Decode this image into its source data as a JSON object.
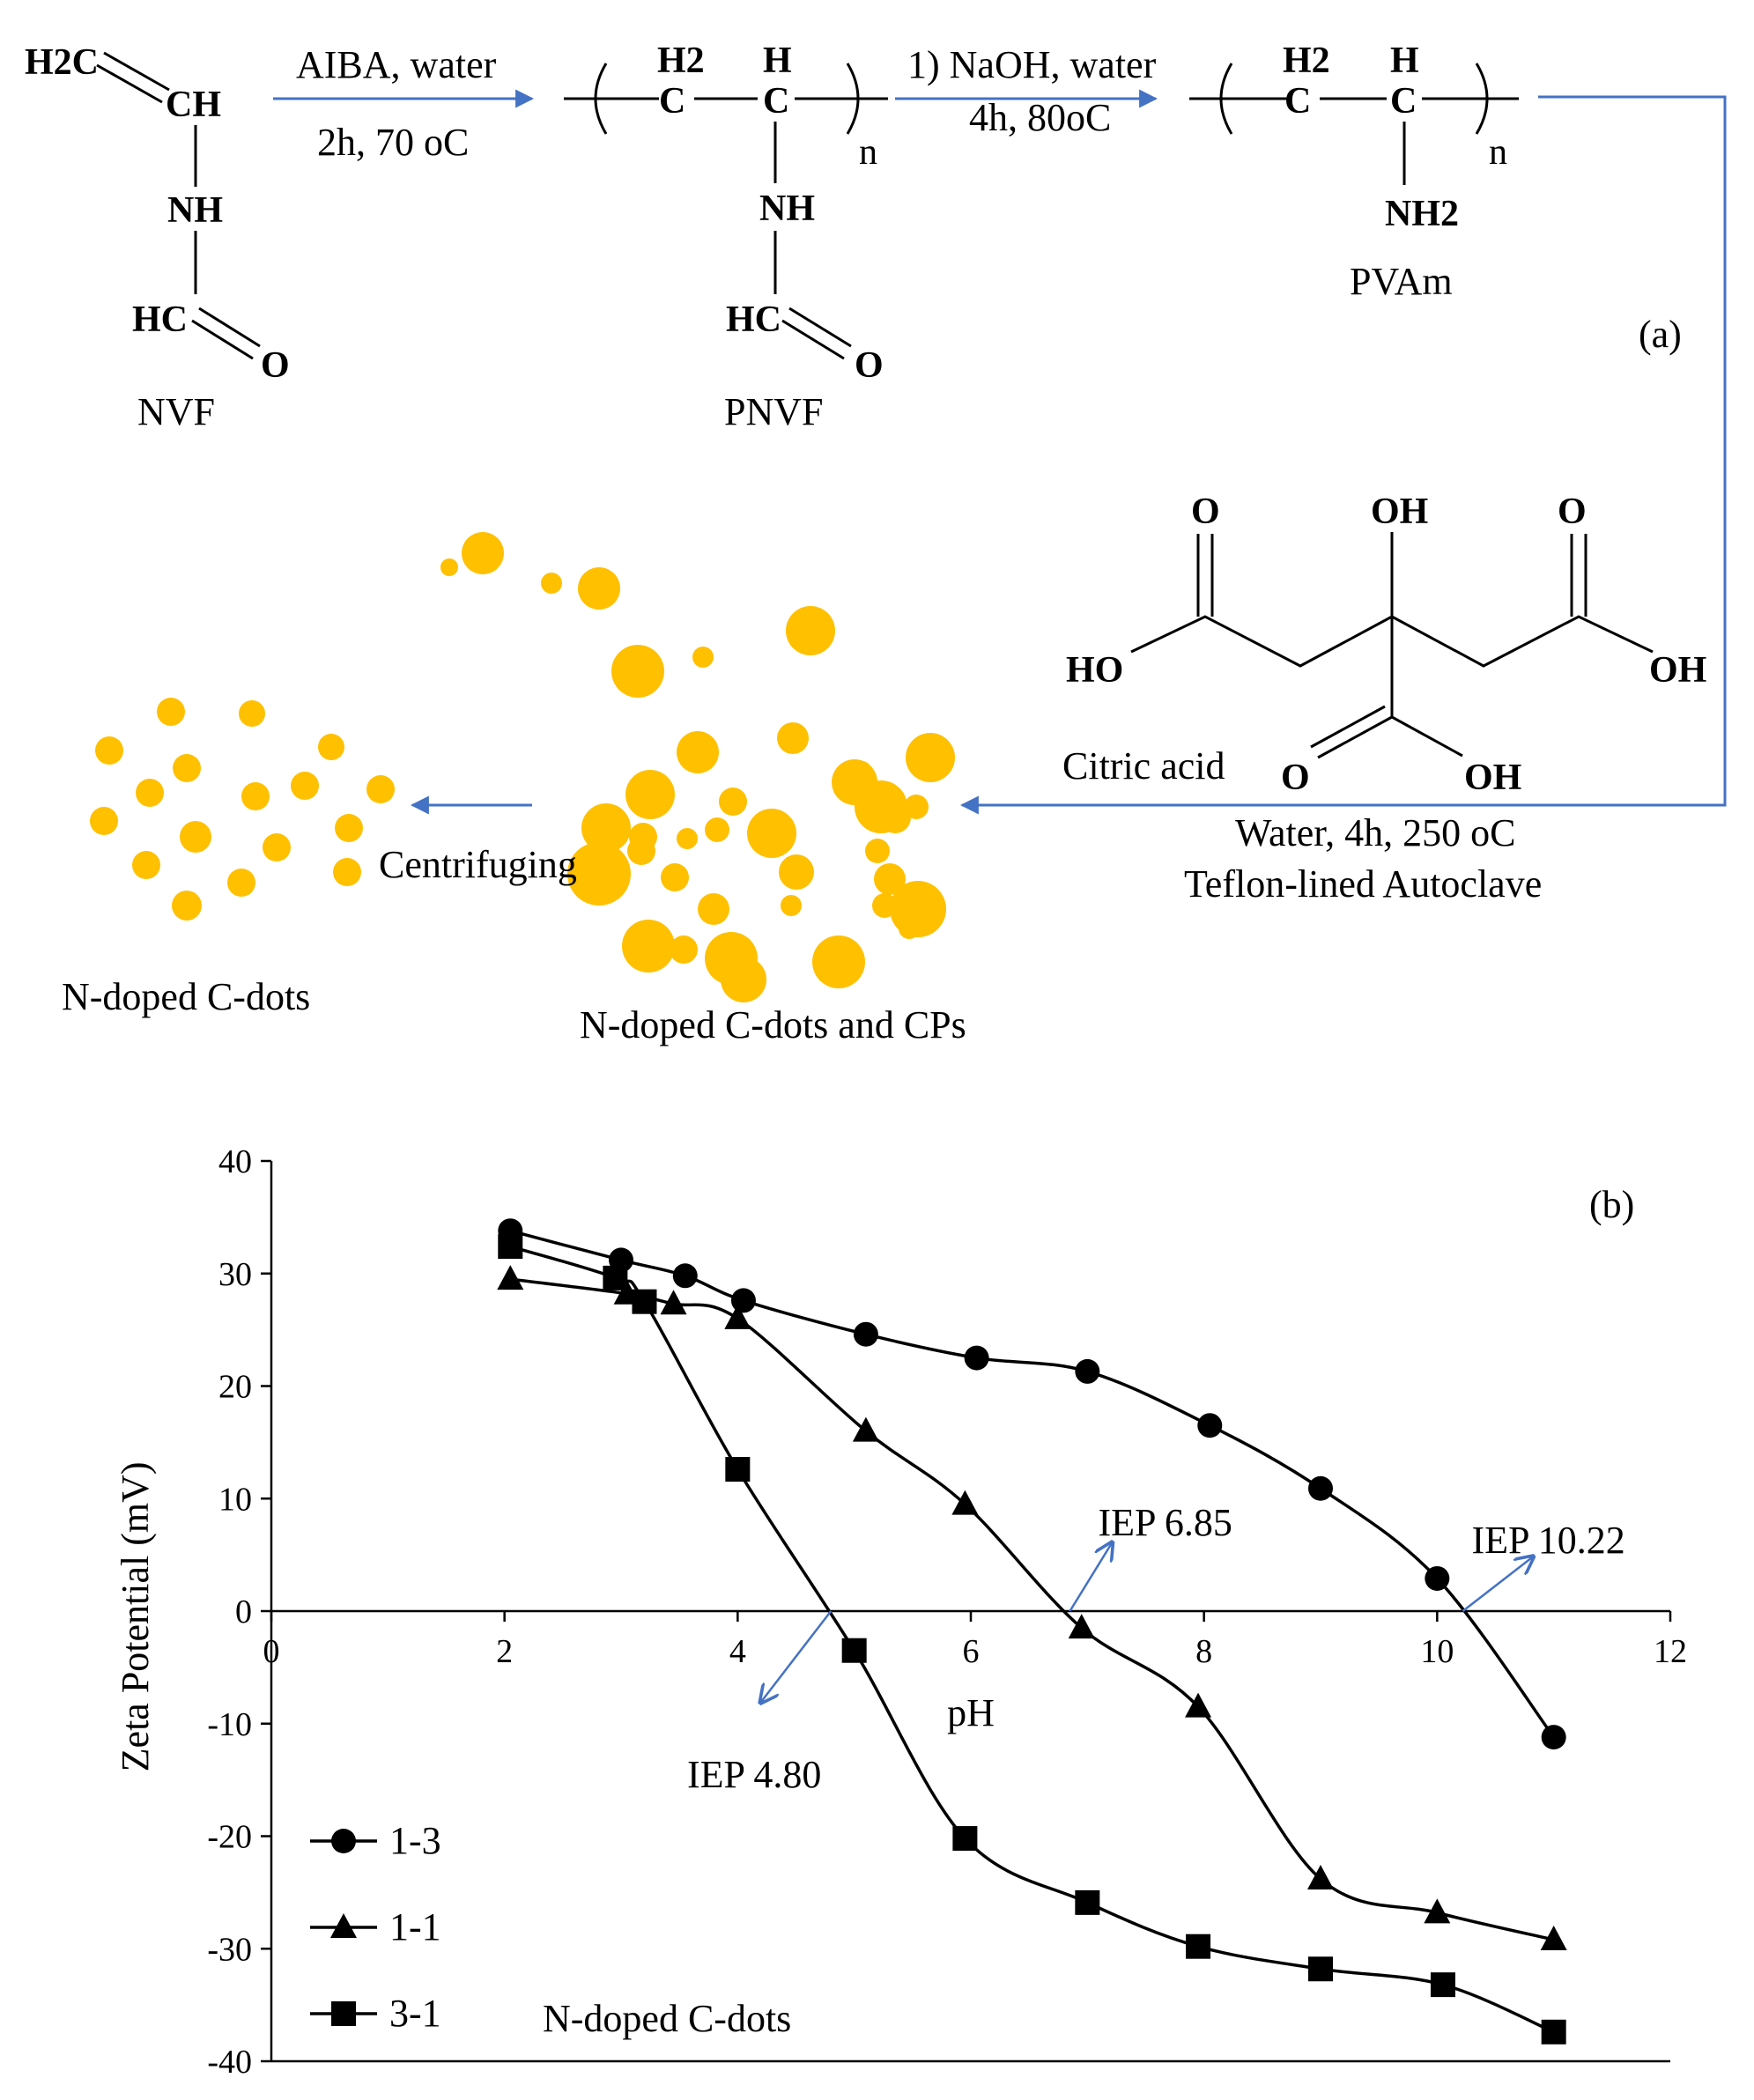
{
  "scheme": {
    "panel_label": "(a)",
    "nvf": {
      "name": "NVF",
      "ch2": "H2C",
      "ch": "CH",
      "nh": "NH",
      "hc": "HC",
      "o": "O"
    },
    "step1": {
      "top": "AIBA, water",
      "bottom": "2h, 70 oC"
    },
    "pnvf": {
      "name": "PNVF",
      "h2": "H2",
      "h": "H",
      "c": "C",
      "n": "n",
      "nh": "NH",
      "hc": "HC",
      "o": "O"
    },
    "step2": {
      "top": "1) NaOH, water",
      "bottom": "4h, 80oC"
    },
    "pvam": {
      "name": "PVAm",
      "h2": "H2",
      "h": "H",
      "c": "C",
      "n": "n",
      "nh2": "NH2"
    },
    "citric": {
      "name": "Citric acid",
      "o": "O",
      "oh": "OH",
      "ho": "HO"
    },
    "step3": {
      "line1": "Water, 4h, 250 oC",
      "line2": "Teflon-lined Autoclave"
    },
    "step4": {
      "label": "Centrifuging"
    },
    "mixture_label": "N-doped C-dots and CPs",
    "product_label": "N-doped C-dots",
    "dot_color": "#FFC000",
    "arrow_color": "#4472C4"
  },
  "chart_data": {
    "type": "line",
    "panel_label": "(b)",
    "xlabel": "pH",
    "ylabel": "Zeta Potential (mV)",
    "xlim": [
      0,
      12
    ],
    "ylim": [
      -40,
      40
    ],
    "xticks": [
      0,
      2,
      4,
      6,
      8,
      10,
      12
    ],
    "yticks": [
      40,
      30,
      20,
      10,
      0,
      -10,
      -20,
      -30,
      -40
    ],
    "grid": false,
    "legend_position": "bottom-left",
    "series": [
      {
        "name": "1-3",
        "marker": "circle",
        "x": [
          2.05,
          3.0,
          3.55,
          4.05,
          5.1,
          6.05,
          7.0,
          8.05,
          9.0,
          10.0,
          11.0
        ],
        "y": [
          33.8,
          31.2,
          29.8,
          27.6,
          24.6,
          22.5,
          21.3,
          16.5,
          10.9,
          2.9,
          -11.2
        ]
      },
      {
        "name": "1-1",
        "marker": "triangle",
        "x": [
          2.05,
          3.05,
          3.45,
          4.0,
          5.1,
          5.95,
          6.95,
          7.95,
          9.0,
          10.0,
          11.0
        ],
        "y": [
          29.5,
          28.2,
          27.3,
          26.0,
          16.0,
          9.5,
          -1.5,
          -8.5,
          -23.8,
          -26.8,
          -29.2
        ]
      },
      {
        "name": "3-1",
        "marker": "square",
        "x": [
          2.05,
          2.95,
          3.2,
          4.0,
          5.0,
          5.95,
          7.0,
          7.95,
          9.0,
          10.05,
          11.0
        ],
        "y": [
          32.4,
          29.6,
          27.5,
          12.6,
          -3.5,
          -20.2,
          -25.9,
          -29.8,
          -31.8,
          -33.2,
          -37.4
        ]
      }
    ],
    "annotations": [
      {
        "text": "IEP 4.80",
        "x": 4.8
      },
      {
        "text": "IEP 6.85",
        "x": 6.85
      },
      {
        "text": "IEP 10.22",
        "x": 10.22
      },
      {
        "text": "N-doped C-dots"
      }
    ]
  }
}
